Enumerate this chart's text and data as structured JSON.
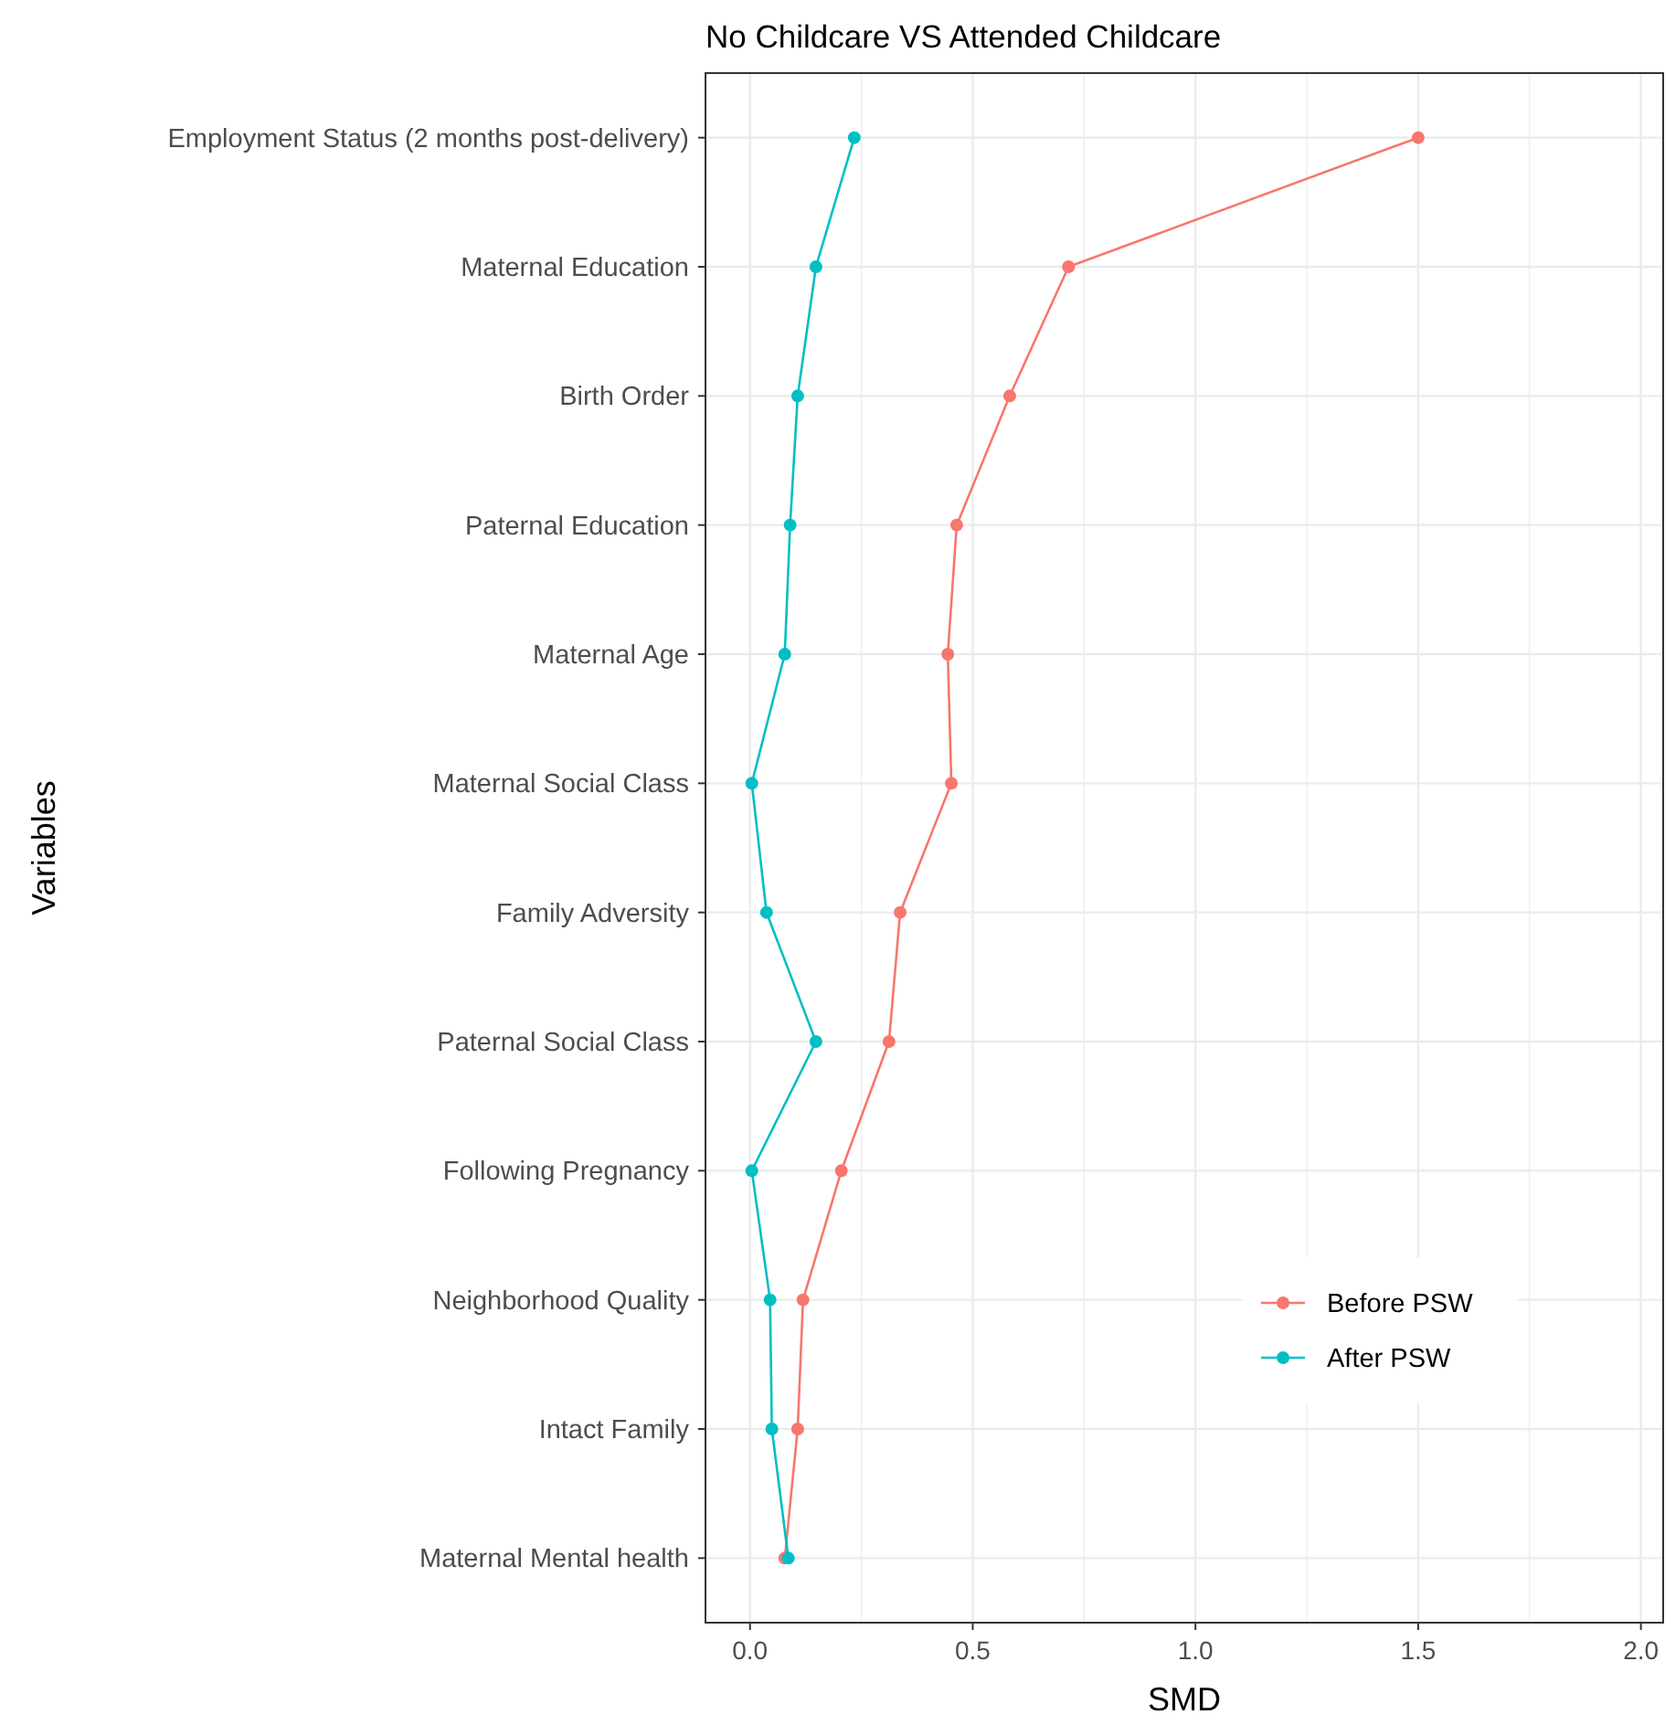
{
  "chart_data": {
    "type": "line",
    "title": "No Childcare VS Attended Childcare",
    "xlabel": "SMD",
    "ylabel": "Variables",
    "orientation": "horizontal",
    "categories": [
      "Employment Status (2 months post-delivery)",
      "Maternal Education",
      "Birth Order",
      "Paternal Education",
      "Maternal Age",
      "Maternal Social Class",
      "Family Adversity",
      "Paternal Social Class",
      "Following Pregnancy",
      "Neighborhood Quality",
      "Intact Family",
      "Maternal Mental health"
    ],
    "series": [
      {
        "name": "Before PSW",
        "color": "#f8766d",
        "values": [
          1.5,
          0.715,
          0.583,
          0.464,
          0.444,
          0.452,
          0.337,
          0.312,
          0.205,
          0.119,
          0.107,
          0.078
        ]
      },
      {
        "name": "After PSW",
        "color": "#00bfc4",
        "values": [
          0.234,
          0.148,
          0.107,
          0.09,
          0.078,
          0.004,
          0.037,
          0.148,
          0.004,
          0.045,
          0.049,
          0.086
        ]
      }
    ],
    "xlim": [
      -0.1,
      2.05
    ],
    "xticks": [
      {
        "value": 0,
        "label": "0.0"
      },
      {
        "value": 0.25,
        "label": null
      },
      {
        "value": 0.5,
        "label": "0.5"
      },
      {
        "value": 0.75,
        "label": null
      },
      {
        "value": 1,
        "label": "1.0"
      },
      {
        "value": 1.25,
        "label": null
      },
      {
        "value": 1.5,
        "label": "1.5"
      },
      {
        "value": 1.75,
        "label": null
      },
      {
        "value": 2,
        "label": "2.0"
      }
    ],
    "grid": true,
    "legend": "bottom right",
    "marker": "circle",
    "line_style": "solid"
  }
}
